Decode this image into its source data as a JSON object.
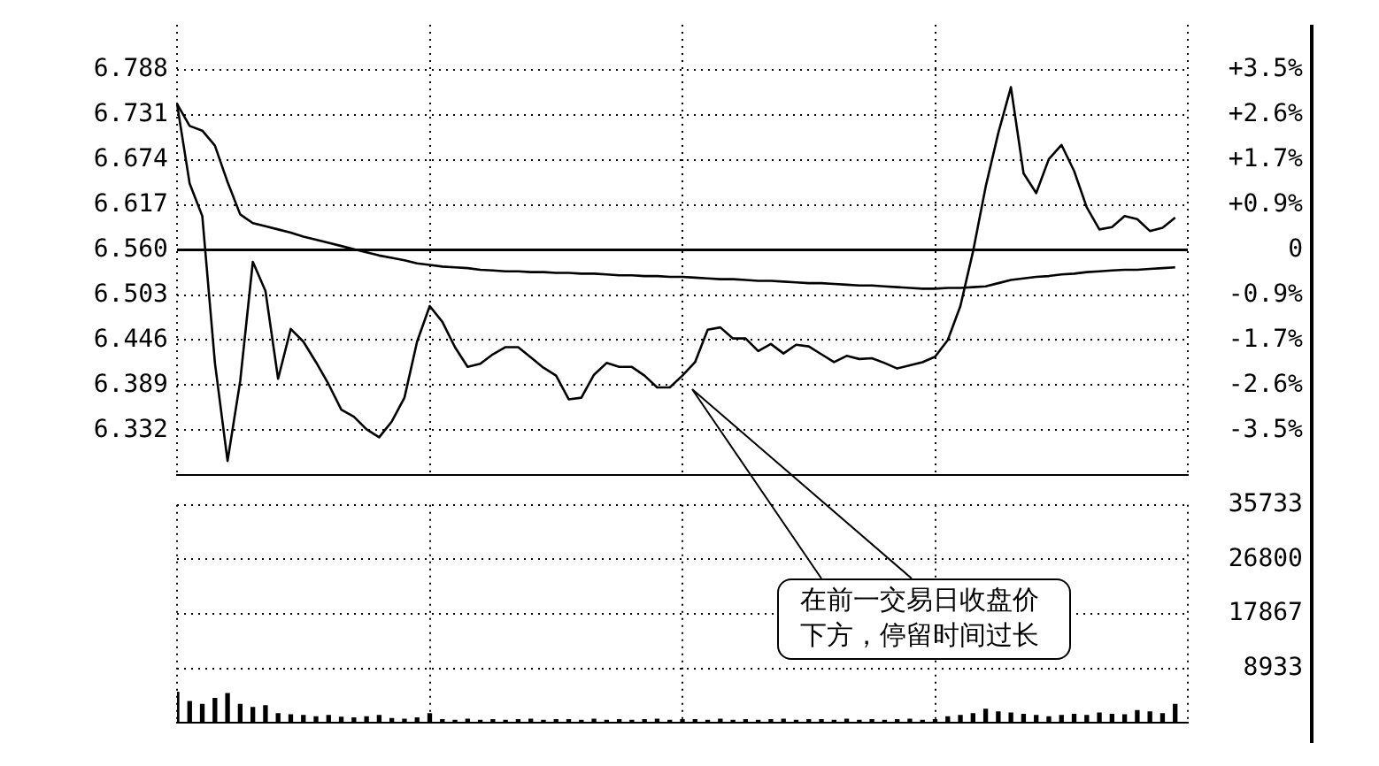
{
  "chart_data": [
    {
      "type": "line",
      "categories": [
        null,
        null,
        null,
        null,
        null,
        null,
        null,
        null,
        null,
        null,
        null,
        null,
        null,
        null,
        null,
        null,
        null,
        null,
        null,
        null,
        null,
        null,
        null,
        null,
        null,
        null,
        null,
        null,
        null,
        null,
        null,
        null,
        null,
        null,
        null,
        null,
        null,
        null,
        null,
        null,
        null,
        null,
        null,
        null,
        null,
        null,
        null,
        null,
        null,
        null,
        null,
        null,
        null,
        null,
        null,
        null,
        null,
        null,
        null,
        null,
        null,
        null,
        null,
        null,
        null,
        null,
        null,
        null,
        null,
        null,
        null,
        null,
        null,
        null,
        null,
        null,
        null,
        null,
        null,
        null,
        null
      ],
      "ylim": [
        6.275,
        6.845
      ],
      "yticks": [
        6.332,
        6.389,
        6.446,
        6.503,
        {
          "value": 6.56,
          "label": "6.560"
        },
        6.617,
        6.674,
        6.731,
        6.788
      ],
      "y2lim": [
        -4.345,
        4.345
      ],
      "y2ticks": [
        {
          "value": -3.476,
          "label": "-3.5%"
        },
        {
          "value": -2.607,
          "label": "-2.6%"
        },
        {
          "value": -1.738,
          "label": "-1.7%"
        },
        {
          "value": -0.869,
          "label": "-0.9%"
        },
        0,
        {
          "value": 0.869,
          "label": "+0.9%"
        },
        {
          "value": 1.738,
          "label": "+1.7%"
        },
        {
          "value": 2.607,
          "label": "+2.6%"
        },
        {
          "value": 3.476,
          "label": "+3.5%"
        }
      ],
      "grid": true,
      "marker": "none",
      "line_style": "solid",
      "ref_lines": [
        {
          "axis": "y",
          "value": 6.56,
          "color": "#000000"
        }
      ],
      "annotations": [
        "在前一交易日收盘价下方，停留时间过长"
      ],
      "series": [
        {
          "color": "#000000",
          "values": [
            6.745,
            6.644,
            6.603,
            6.417,
            6.293,
            6.394,
            6.545,
            6.508,
            6.397,
            6.46,
            6.444,
            6.418,
            6.39,
            6.358,
            6.349,
            6.333,
            6.323,
            6.343,
            6.373,
            6.444,
            6.489,
            6.469,
            6.437,
            6.412,
            6.416,
            6.428,
            6.437,
            6.437,
            6.424,
            6.411,
            6.401,
            6.371,
            6.373,
            6.402,
            6.417,
            6.412,
            6.412,
            6.401,
            6.386,
            6.386,
            6.401,
            6.418,
            6.459,
            6.462,
            6.448,
            6.448,
            6.432,
            6.441,
            6.429,
            6.44,
            6.438,
            6.428,
            6.418,
            6.426,
            6.422,
            6.423,
            6.417,
            6.41,
            6.414,
            6.418,
            6.425,
            6.446,
            6.489,
            6.558,
            6.64,
            6.708,
            6.766,
            6.657,
            6.632,
            6.675,
            6.693,
            6.66,
            6.614,
            6.586,
            6.589,
            6.603,
            6.599,
            6.584,
            6.588,
            6.601,
            null
          ]
        },
        {
          "color": "#000000",
          "values": [
            6.745,
            6.717,
            6.711,
            6.692,
            6.646,
            6.605,
            6.594,
            6.59,
            6.586,
            6.582,
            6.577,
            6.573,
            6.569,
            6.565,
            6.561,
            6.557,
            6.553,
            6.55,
            6.547,
            6.543,
            6.541,
            6.539,
            6.538,
            6.537,
            6.535,
            6.534,
            6.533,
            6.533,
            6.532,
            6.532,
            6.531,
            6.531,
            6.53,
            6.53,
            6.529,
            6.528,
            6.528,
            6.527,
            6.527,
            6.526,
            6.526,
            6.525,
            6.524,
            6.523,
            6.523,
            6.522,
            6.521,
            6.521,
            6.52,
            6.519,
            6.518,
            6.518,
            6.517,
            6.516,
            6.515,
            6.515,
            6.514,
            6.513,
            6.512,
            6.511,
            6.511,
            6.512,
            6.512,
            6.513,
            6.514,
            6.518,
            6.522,
            6.524,
            6.526,
            6.527,
            6.529,
            6.53,
            6.532,
            6.533,
            6.534,
            6.535,
            6.535,
            6.536,
            6.537,
            6.538,
            null
          ]
        }
      ]
    },
    {
      "type": "bar",
      "categories": [
        null,
        null,
        null,
        null,
        null,
        null,
        null,
        null,
        null,
        null,
        null,
        null,
        null,
        null,
        null,
        null,
        null,
        null,
        null,
        null,
        null,
        null,
        null,
        null,
        null,
        null,
        null,
        null,
        null,
        null,
        null,
        null,
        null,
        null,
        null,
        null,
        null,
        null,
        null,
        null,
        null,
        null,
        null,
        null,
        null,
        null,
        null,
        null,
        null,
        null,
        null,
        null,
        null,
        null,
        null,
        null,
        null,
        null,
        null,
        null,
        null,
        null,
        null,
        null,
        null,
        null,
        null,
        null,
        null,
        null,
        null,
        null,
        null,
        null,
        null,
        null,
        null,
        null,
        null,
        null,
        null
      ],
      "y2lim": [
        0,
        35733
      ],
      "y2ticks": [
        8933,
        17867,
        26800,
        35733
      ],
      "grid": true,
      "series": [
        {
          "color": "#000000",
          "axis": "y2",
          "values": [
            5000,
            3500,
            3000,
            4000,
            4800,
            3000,
            2500,
            2800,
            1500,
            1300,
            1200,
            1000,
            1200,
            900,
            800,
            1000,
            1200,
            700,
            600,
            800,
            1500,
            500,
            400,
            600,
            400,
            500,
            400,
            500,
            600,
            400,
            500,
            500,
            400,
            600,
            400,
            500,
            400,
            500,
            600,
            400,
            500,
            500,
            400,
            600,
            400,
            500,
            400,
            500,
            600,
            400,
            500,
            500,
            400,
            600,
            400,
            500,
            400,
            500,
            600,
            400,
            500,
            1000,
            1200,
            1500,
            2200,
            1800,
            1600,
            1400,
            1200,
            1000,
            1200,
            1400,
            1200,
            1600,
            1400,
            1300,
            2000,
            1800,
            1500,
            3000,
            null
          ]
        }
      ]
    }
  ]
}
